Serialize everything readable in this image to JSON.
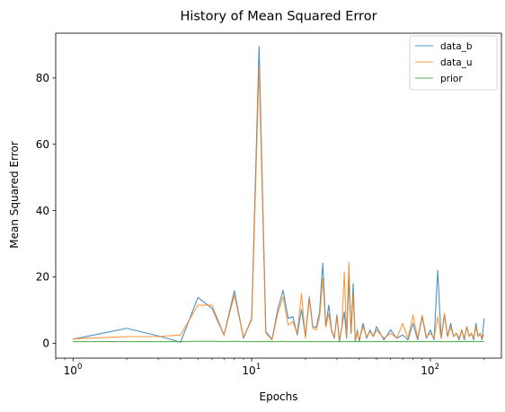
{
  "chart_data": {
    "type": "line",
    "title": "History of Mean Squared Error",
    "xlabel": "Epochs",
    "ylabel": "Mean Squared Error",
    "xscale": "log",
    "xlim": [
      0.8,
      250
    ],
    "ylim": [
      -4.5,
      93.5
    ],
    "x_ticks": [
      {
        "value": 1,
        "base": "10",
        "exp": "0"
      },
      {
        "value": 10,
        "base": "10",
        "exp": "1"
      },
      {
        "value": 100,
        "base": "10",
        "exp": "2"
      }
    ],
    "y_ticks": [
      0,
      20,
      40,
      60,
      80
    ],
    "legend_position": "upper right",
    "grid": false,
    "series": [
      {
        "name": "data_b",
        "color": "#1f77b4",
        "points": [
          [
            1,
            1.2
          ],
          [
            2,
            4.5
          ],
          [
            3,
            2.2
          ],
          [
            4,
            0.3
          ],
          [
            5,
            13.8
          ],
          [
            6,
            10.5
          ],
          [
            7,
            2.5
          ],
          [
            8,
            15.8
          ],
          [
            9,
            1.5
          ],
          [
            10,
            7.5
          ],
          [
            11,
            89.5
          ],
          [
            12,
            3.5
          ],
          [
            13,
            1.2
          ],
          [
            14,
            10.2
          ],
          [
            15,
            16
          ],
          [
            16,
            7.5
          ],
          [
            17,
            8
          ],
          [
            18,
            2.5
          ],
          [
            19,
            10.2
          ],
          [
            20,
            2.2
          ],
          [
            21,
            14
          ],
          [
            22,
            5
          ],
          [
            23,
            4.8
          ],
          [
            24,
            9.5
          ],
          [
            25,
            24.2
          ],
          [
            26,
            5
          ],
          [
            27,
            11.5
          ],
          [
            28,
            4
          ],
          [
            29,
            1.5
          ],
          [
            30,
            8.5
          ],
          [
            31,
            0.5
          ],
          [
            32,
            5
          ],
          [
            33,
            9.5
          ],
          [
            34,
            1.5
          ],
          [
            35,
            19.5
          ],
          [
            36,
            3
          ],
          [
            37,
            18
          ],
          [
            38,
            0.5
          ],
          [
            39,
            4
          ],
          [
            40,
            0.5
          ],
          [
            42,
            6
          ],
          [
            44,
            1.5
          ],
          [
            46,
            4
          ],
          [
            48,
            2
          ],
          [
            50,
            5
          ],
          [
            55,
            1
          ],
          [
            60,
            4
          ],
          [
            65,
            1.5
          ],
          [
            70,
            2.5
          ],
          [
            75,
            1
          ],
          [
            80,
            6
          ],
          [
            85,
            1
          ],
          [
            90,
            8
          ],
          [
            95,
            1.5
          ],
          [
            100,
            4
          ],
          [
            105,
            1
          ],
          [
            110,
            22
          ],
          [
            115,
            1.5
          ],
          [
            120,
            8.5
          ],
          [
            125,
            2
          ],
          [
            130,
            6
          ],
          [
            135,
            2
          ],
          [
            140,
            3
          ],
          [
            145,
            1
          ],
          [
            150,
            4
          ],
          [
            155,
            1
          ],
          [
            160,
            5
          ],
          [
            165,
            2
          ],
          [
            170,
            3
          ],
          [
            175,
            1
          ],
          [
            180,
            6
          ],
          [
            185,
            2
          ],
          [
            190,
            3
          ],
          [
            195,
            1
          ],
          [
            200,
            7.5
          ]
        ]
      },
      {
        "name": "data_u",
        "color": "#ff7f0e",
        "points": [
          [
            1,
            1.3
          ],
          [
            2,
            2
          ],
          [
            3,
            2
          ],
          [
            4,
            2.5
          ],
          [
            5,
            11.5
          ],
          [
            6,
            11.5
          ],
          [
            7,
            2.5
          ],
          [
            8,
            14.5
          ],
          [
            9,
            1.8
          ],
          [
            10,
            7
          ],
          [
            11,
            83.5
          ],
          [
            12,
            3
          ],
          [
            13,
            1
          ],
          [
            14,
            9
          ],
          [
            15,
            14
          ],
          [
            16,
            5.5
          ],
          [
            17,
            6.5
          ],
          [
            18,
            3
          ],
          [
            19,
            15
          ],
          [
            20,
            1.5
          ],
          [
            21,
            13.5
          ],
          [
            22,
            4.5
          ],
          [
            23,
            4
          ],
          [
            24,
            8
          ],
          [
            25,
            19.5
          ],
          [
            26,
            5
          ],
          [
            27,
            9
          ],
          [
            28,
            3.5
          ],
          [
            29,
            2
          ],
          [
            30,
            8
          ],
          [
            31,
            1
          ],
          [
            32,
            5
          ],
          [
            33,
            21.5
          ],
          [
            34,
            2
          ],
          [
            35,
            24.5
          ],
          [
            36,
            3
          ],
          [
            37,
            15
          ],
          [
            38,
            1
          ],
          [
            39,
            3.5
          ],
          [
            40,
            1
          ],
          [
            42,
            5
          ],
          [
            44,
            2
          ],
          [
            46,
            3.5
          ],
          [
            48,
            2
          ],
          [
            50,
            4
          ],
          [
            55,
            1.5
          ],
          [
            60,
            3
          ],
          [
            65,
            1.5
          ],
          [
            70,
            6
          ],
          [
            75,
            1.5
          ],
          [
            80,
            8.5
          ],
          [
            85,
            1.5
          ],
          [
            90,
            8.5
          ],
          [
            95,
            2
          ],
          [
            100,
            3
          ],
          [
            105,
            1.5
          ],
          [
            110,
            8
          ],
          [
            115,
            1.5
          ],
          [
            120,
            9
          ],
          [
            125,
            2
          ],
          [
            130,
            5
          ],
          [
            135,
            2
          ],
          [
            140,
            3
          ],
          [
            145,
            1.5
          ],
          [
            150,
            4
          ],
          [
            155,
            1.5
          ],
          [
            160,
            5
          ],
          [
            165,
            2
          ],
          [
            170,
            3
          ],
          [
            175,
            1.5
          ],
          [
            180,
            5
          ],
          [
            185,
            2
          ],
          [
            190,
            3
          ],
          [
            195,
            1.5
          ],
          [
            200,
            2.5
          ]
        ]
      },
      {
        "name": "prior",
        "color": "#2ca02c",
        "points": [
          [
            1,
            0.5
          ],
          [
            2,
            0.5
          ],
          [
            3,
            0.5
          ],
          [
            4,
            0.5
          ],
          [
            5,
            0.6
          ],
          [
            6,
            0.6
          ],
          [
            7,
            0.5
          ],
          [
            8,
            0.6
          ],
          [
            9,
            0.5
          ],
          [
            10,
            0.5
          ],
          [
            11,
            0.5
          ],
          [
            12,
            0.5
          ],
          [
            13,
            0.5
          ],
          [
            14,
            0.5
          ],
          [
            15,
            0.55
          ],
          [
            16,
            0.5
          ],
          [
            17,
            0.5
          ],
          [
            18,
            0.5
          ],
          [
            19,
            0.5
          ],
          [
            20,
            0.5
          ],
          [
            25,
            0.5
          ],
          [
            30,
            0.5
          ],
          [
            35,
            0.5
          ],
          [
            40,
            0.5
          ],
          [
            50,
            0.5
          ],
          [
            60,
            0.5
          ],
          [
            70,
            0.5
          ],
          [
            80,
            0.5
          ],
          [
            90,
            0.5
          ],
          [
            100,
            0.5
          ],
          [
            120,
            0.5
          ],
          [
            140,
            0.5
          ],
          [
            160,
            0.5
          ],
          [
            180,
            0.5
          ],
          [
            200,
            0.5
          ]
        ]
      }
    ]
  }
}
